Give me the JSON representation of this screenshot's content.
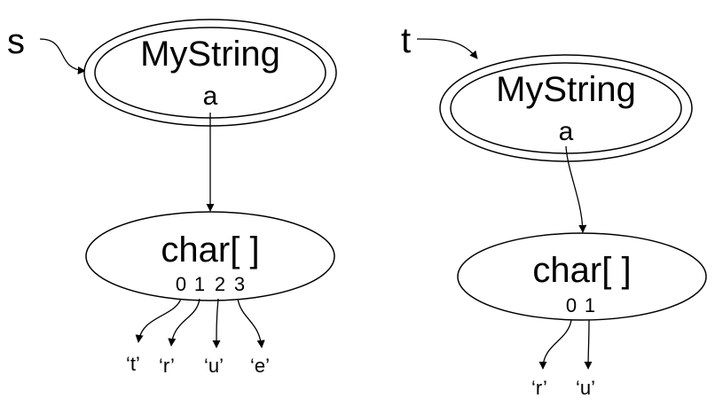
{
  "left": {
    "variable": "s",
    "object": {
      "class_name": "MyString",
      "field": "a"
    },
    "array": {
      "type_label": "char[ ]",
      "indices": [
        "0",
        "1",
        "2",
        "3"
      ],
      "elements": [
        "‘t’",
        "‘r’",
        "‘u’",
        "‘e’"
      ]
    }
  },
  "right": {
    "variable": "t",
    "object": {
      "class_name": "MyString",
      "field": "a"
    },
    "array": {
      "type_label": "char[ ]",
      "indices": [
        "0",
        "1"
      ],
      "elements": [
        "‘r’",
        "‘u’"
      ]
    }
  }
}
